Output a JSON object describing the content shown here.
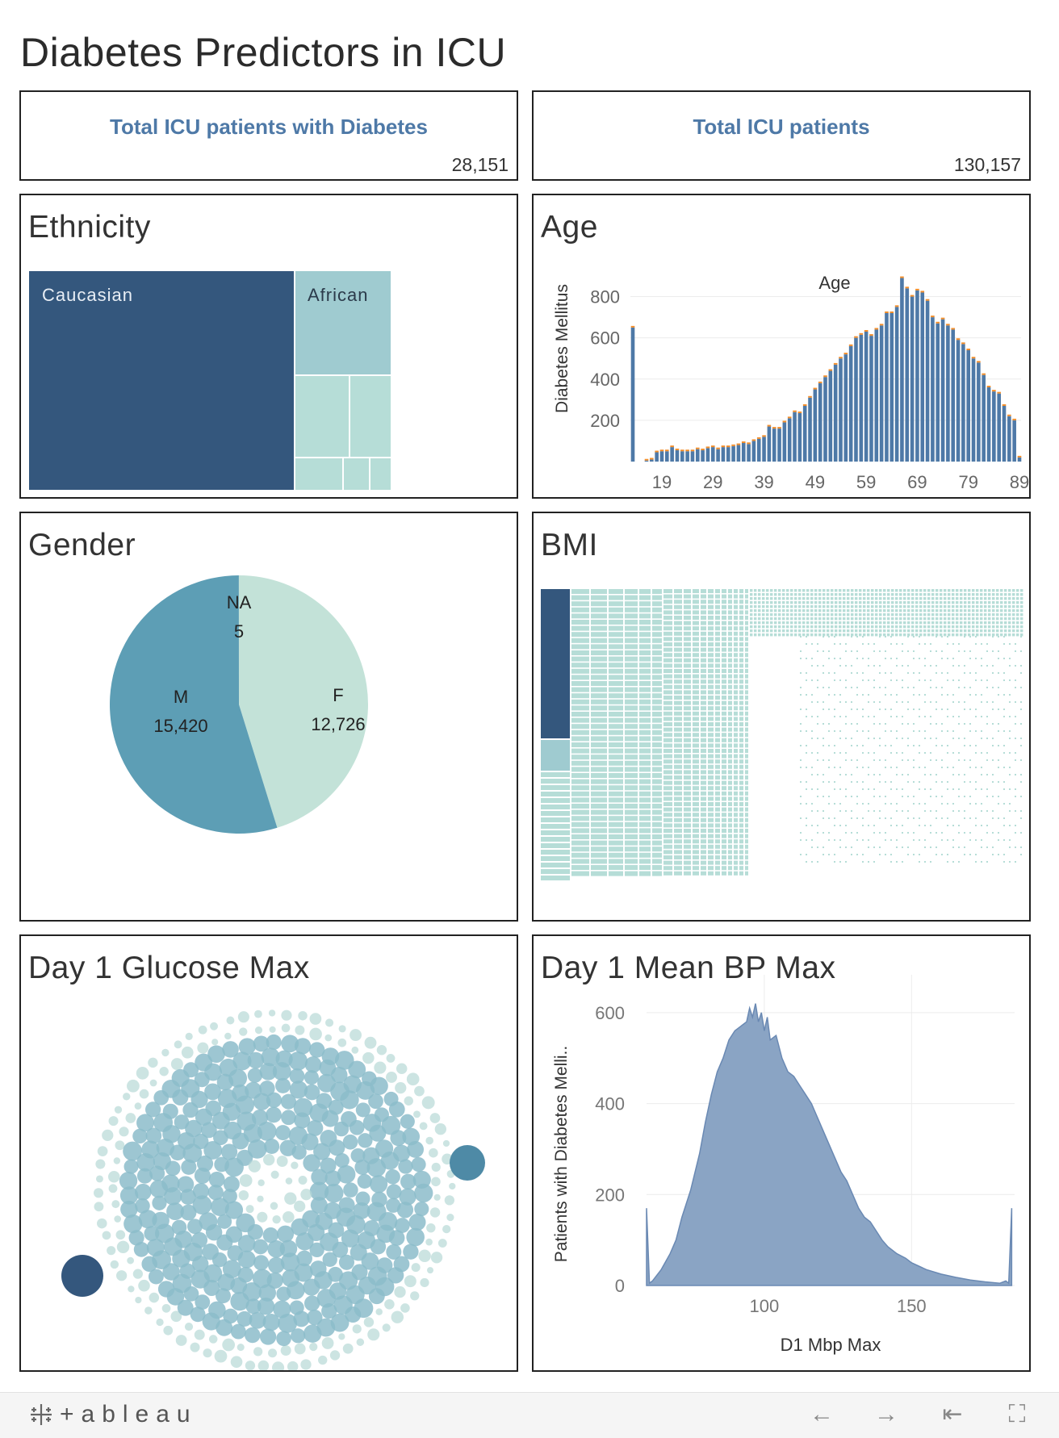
{
  "dashboard": {
    "title": "Diabetes Predictors in ICU"
  },
  "kpis": {
    "diabetes": {
      "label": "Total ICU patients with Diabetes",
      "value": "28,151"
    },
    "total": {
      "label": "Total ICU patients",
      "value": "130,157"
    }
  },
  "ethnicity": {
    "title": "Ethnicity",
    "labels": {
      "caucasian": "Caucasian",
      "african": "African"
    },
    "colors": {
      "caucasian": "#34577d",
      "african": "#9fcbd0",
      "other": "#b6ddd7"
    }
  },
  "age": {
    "title": "Age",
    "chart_data": {
      "type": "bar",
      "title": "Age",
      "ylabel": "Diabetes Mellitus",
      "xlabel": "",
      "x_ticks": [
        "19",
        "29",
        "39",
        "49",
        "59",
        "69",
        "79",
        "89"
      ],
      "y_ticks": [
        "200",
        "400",
        "600",
        "800"
      ],
      "ylim": [
        0,
        900
      ],
      "x": [
        0,
        16,
        17,
        18,
        19,
        20,
        21,
        22,
        23,
        24,
        25,
        26,
        27,
        28,
        29,
        30,
        31,
        32,
        33,
        34,
        35,
        36,
        37,
        38,
        39,
        40,
        41,
        42,
        43,
        44,
        45,
        46,
        47,
        48,
        49,
        50,
        51,
        52,
        53,
        54,
        55,
        56,
        57,
        58,
        59,
        60,
        61,
        62,
        63,
        64,
        65,
        66,
        67,
        68,
        69,
        70,
        71,
        72,
        73,
        74,
        75,
        76,
        77,
        78,
        79,
        80,
        81,
        82,
        83,
        84,
        85,
        86,
        87,
        88,
        89
      ],
      "values": [
        650,
        5,
        10,
        45,
        50,
        50,
        70,
        55,
        50,
        50,
        50,
        60,
        55,
        65,
        70,
        60,
        70,
        70,
        75,
        80,
        90,
        85,
        100,
        110,
        120,
        170,
        160,
        160,
        190,
        210,
        240,
        235,
        270,
        310,
        350,
        380,
        410,
        440,
        470,
        500,
        520,
        560,
        600,
        615,
        630,
        610,
        640,
        660,
        720,
        720,
        750,
        890,
        840,
        800,
        830,
        820,
        780,
        700,
        670,
        690,
        660,
        640,
        590,
        570,
        540,
        500,
        480,
        420,
        360,
        340,
        330,
        270,
        220,
        200,
        20
      ],
      "color": "#4e79a7",
      "cap_color": "#f28e2b",
      "grid": true
    }
  },
  "gender": {
    "title": "Gender",
    "chart_data": {
      "type": "pie",
      "slices": [
        {
          "label": "F",
          "value": 12726,
          "display": "12,726",
          "color": "#c3e2d8"
        },
        {
          "label": "M",
          "value": 15420,
          "display": "15,420",
          "color": "#5d9eb5"
        },
        {
          "label": "NA",
          "value": 5,
          "display": "5",
          "color": "#5d9eb5"
        }
      ]
    }
  },
  "bmi": {
    "title": "BMI",
    "colors": {
      "dark": "#34577d",
      "mid": "#9fcbd0",
      "light": "#b6ddd7"
    }
  },
  "glucose": {
    "title": "Day 1 Glucose Max",
    "colors": {
      "dark": "#34577d",
      "mid": "#4e8aa6",
      "bubble_big": "#8cbcca",
      "bubble_small": "#b6d9d6"
    }
  },
  "bp": {
    "title": "Day 1 Mean BP Max",
    "chart_data": {
      "type": "area",
      "xlabel": "D1 Mbp Max",
      "ylabel": "Patients with Diabetes Melli..",
      "x_ticks": [
        "100",
        "150"
      ],
      "y_ticks": [
        "0",
        "200",
        "400",
        "600"
      ],
      "xlim": [
        60,
        185
      ],
      "ylim": [
        0,
        630
      ],
      "x": [
        60,
        61,
        62,
        65,
        68,
        70,
        72,
        75,
        78,
        80,
        82,
        84,
        86,
        88,
        90,
        92,
        94,
        95,
        96,
        97,
        98,
        99,
        100,
        101,
        102,
        104,
        106,
        108,
        110,
        112,
        114,
        116,
        118,
        120,
        122,
        124,
        126,
        128,
        130,
        132,
        134,
        136,
        138,
        140,
        142,
        145,
        148,
        150,
        155,
        160,
        165,
        170,
        175,
        180,
        182,
        183,
        184
      ],
      "values": [
        170,
        5,
        10,
        35,
        70,
        100,
        150,
        210,
        290,
        360,
        420,
        470,
        500,
        540,
        560,
        570,
        580,
        610,
        590,
        620,
        580,
        600,
        560,
        590,
        540,
        550,
        500,
        470,
        460,
        440,
        420,
        400,
        370,
        340,
        310,
        280,
        250,
        230,
        200,
        170,
        150,
        140,
        120,
        100,
        85,
        70,
        60,
        50,
        35,
        25,
        18,
        12,
        8,
        5,
        10,
        5,
        170
      ],
      "color": "#8aa4c4",
      "line_color": "#6a89b3",
      "grid": true
    }
  },
  "footer": {
    "logo_text": "+ableau",
    "buttons": {
      "back": "←",
      "forward": "→",
      "first": "⇤",
      "fullscreen": "⛶"
    }
  }
}
